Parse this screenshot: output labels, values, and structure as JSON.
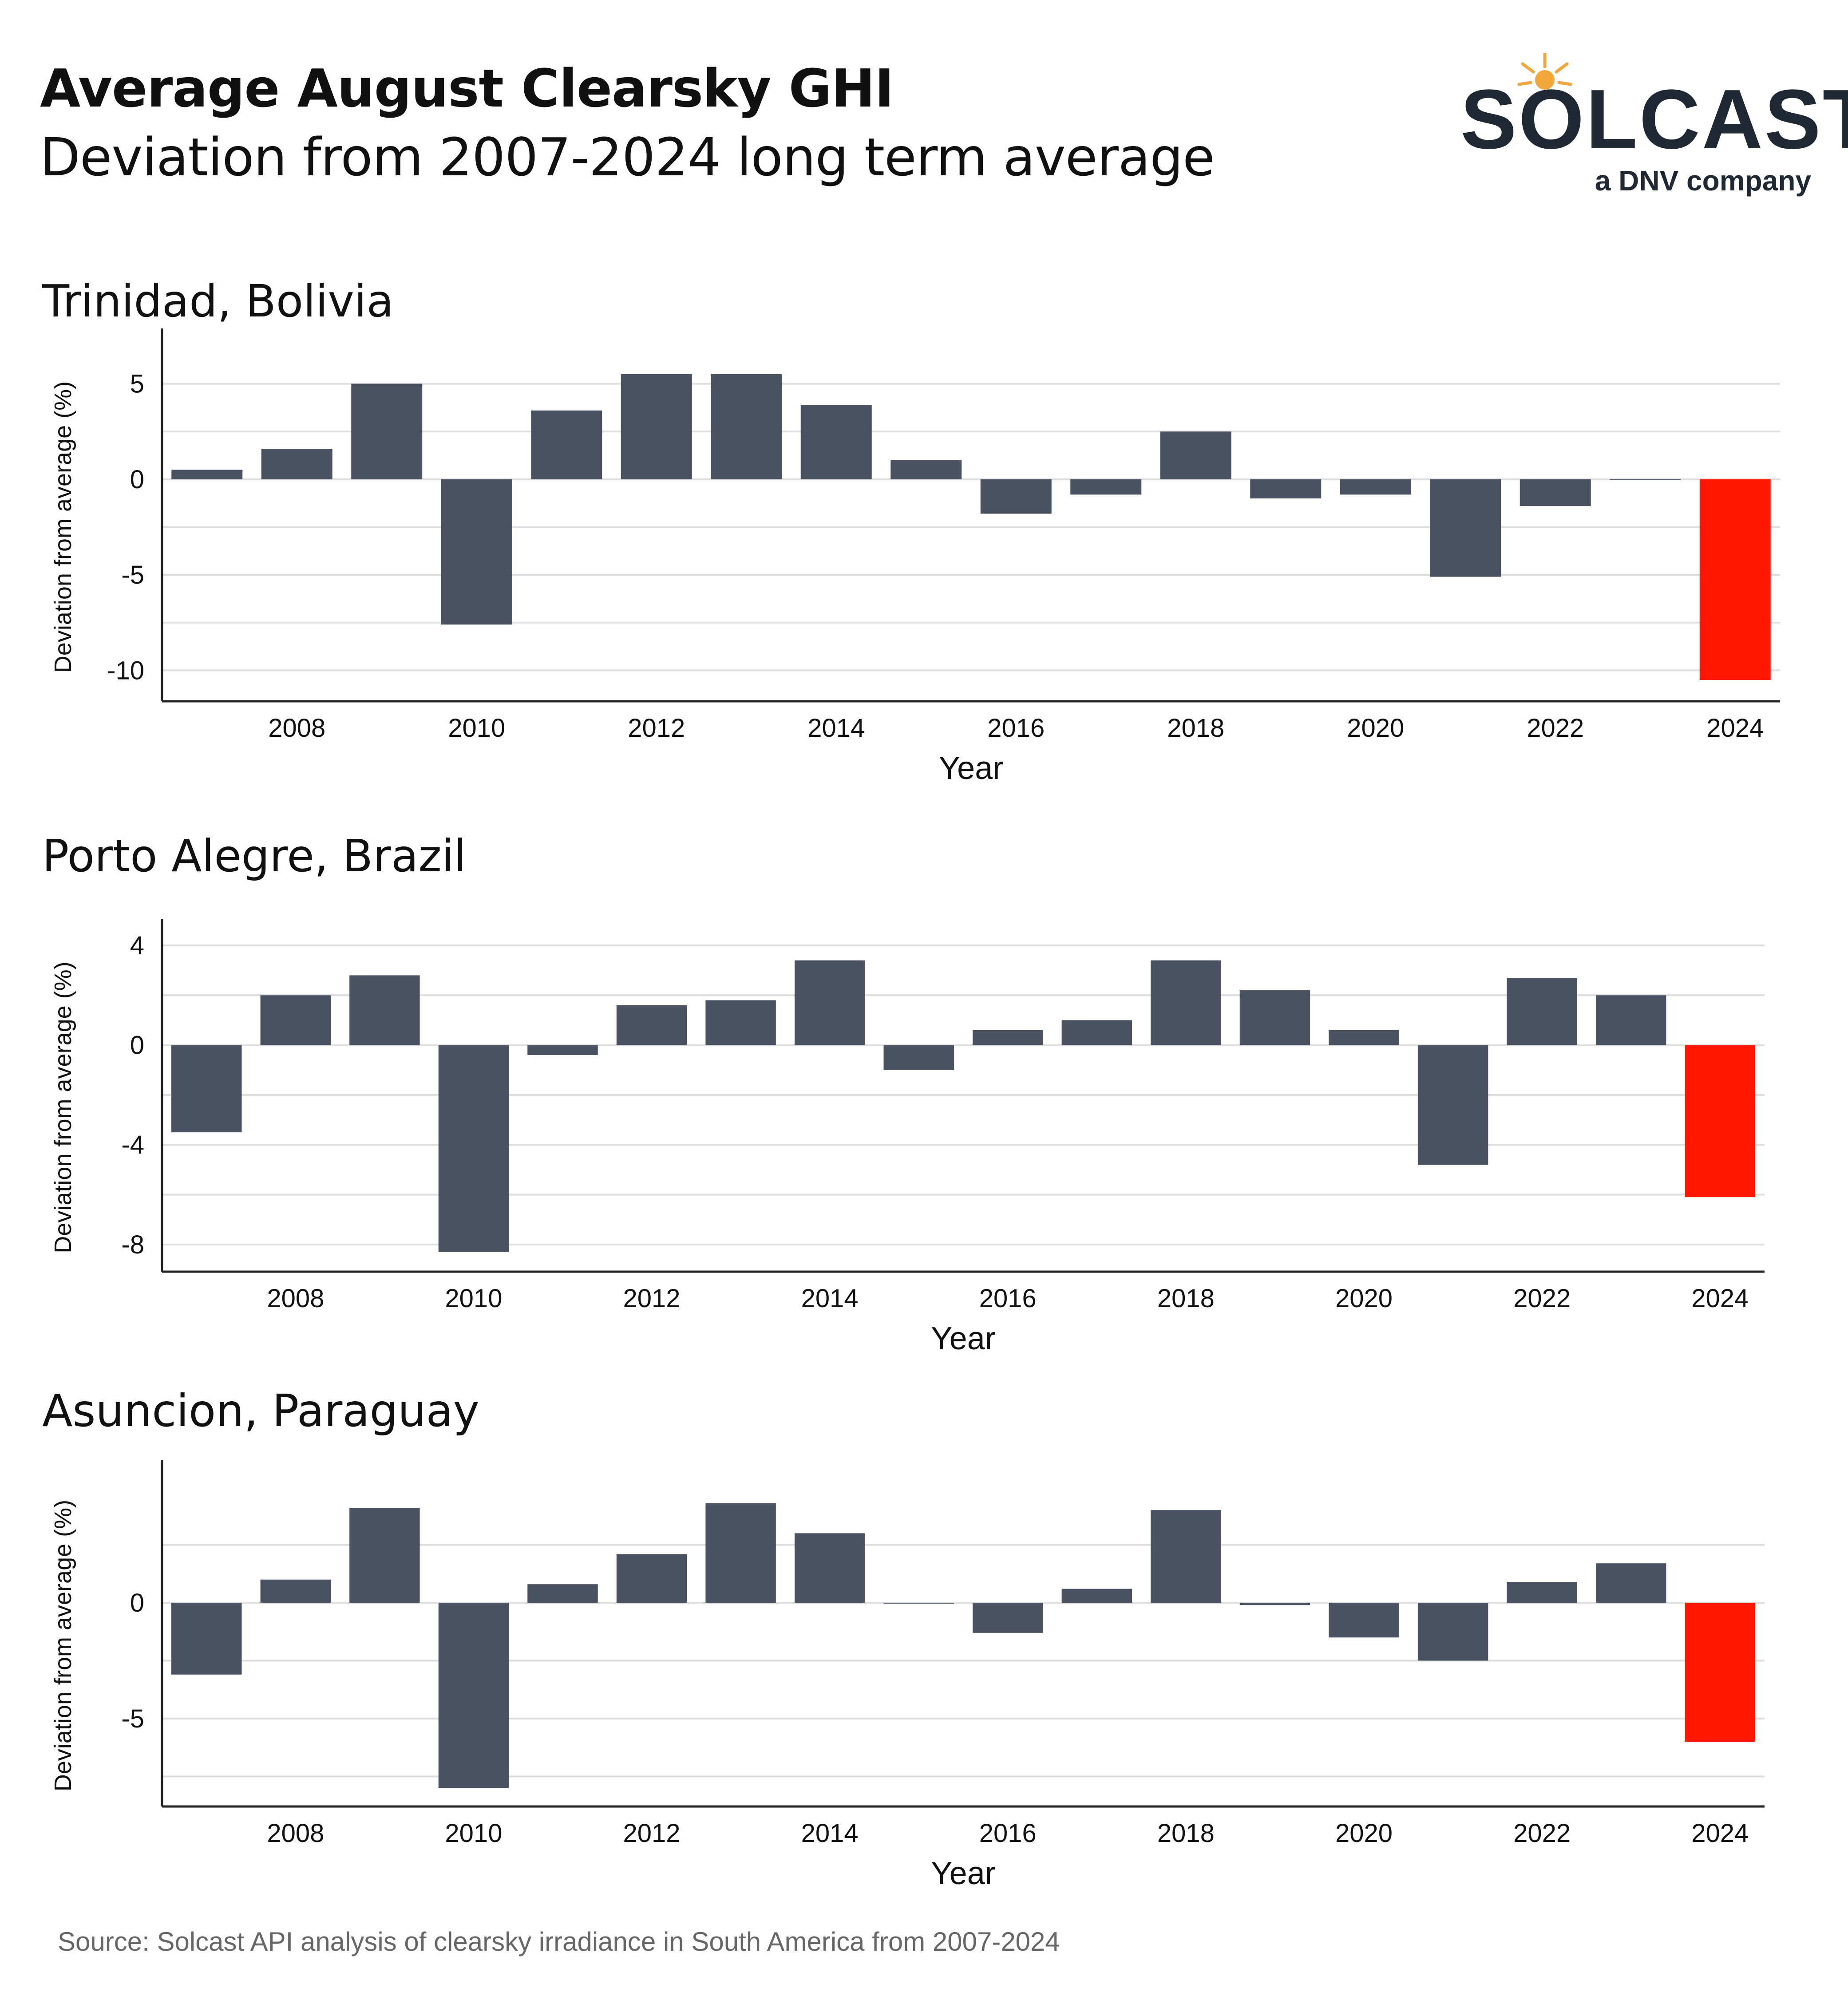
{
  "header": {
    "title": "Average August Clearsky GHI",
    "subtitle": "Deviation from 2007-2024 long term average"
  },
  "logo": {
    "wordmark": "SOLCAST",
    "tagline": "a DNV company"
  },
  "colors": {
    "bar": "#4a5160",
    "highlight": "#ff1500",
    "grid": "#dddddd",
    "axis": "#222222"
  },
  "chart_data": [
    {
      "type": "bar",
      "title": "Trinidad, Bolivia",
      "xlabel": "Year",
      "ylabel": "Deviation from average (%)",
      "categories": [
        "2007",
        "2008",
        "2009",
        "2010",
        "2011",
        "2012",
        "2013",
        "2014",
        "2015",
        "2016",
        "2017",
        "2018",
        "2019",
        "2020",
        "2021",
        "2022",
        "2023",
        "2024"
      ],
      "values": [
        0.5,
        1.6,
        5.0,
        -7.6,
        3.6,
        5.5,
        5.5,
        3.9,
        1.0,
        -1.8,
        -0.8,
        2.5,
        -1.0,
        -0.8,
        -5.1,
        -1.4,
        0.0,
        -10.5
      ],
      "highlight": "2024",
      "yticks": [
        5,
        0,
        -5,
        -10
      ],
      "ytick_labels": [
        "5",
        "0",
        "-5",
        "-10"
      ],
      "xtick_labels": [
        "2008",
        "2010",
        "2012",
        "2014",
        "2016",
        "2018",
        "2020",
        "2022",
        "2024"
      ],
      "ylim": [
        -11.5,
        6.5
      ]
    },
    {
      "type": "bar",
      "title": "Porto Alegre, Brazil",
      "xlabel": "Year",
      "ylabel": "Deviation from average (%)",
      "categories": [
        "2007",
        "2008",
        "2009",
        "2010",
        "2011",
        "2012",
        "2013",
        "2014",
        "2015",
        "2016",
        "2017",
        "2018",
        "2019",
        "2020",
        "2021",
        "2022",
        "2023",
        "2024"
      ],
      "values": [
        -3.5,
        2.0,
        2.8,
        -8.3,
        -0.4,
        1.6,
        1.8,
        3.4,
        -1.0,
        0.6,
        1.0,
        3.4,
        2.2,
        0.6,
        -4.8,
        2.7,
        2.0,
        -6.1
      ],
      "highlight": "2024",
      "yticks": [
        4,
        0,
        -4,
        -8
      ],
      "ytick_labels": [
        "4",
        "0",
        "-4",
        "-8"
      ],
      "xtick_labels": [
        "2008",
        "2010",
        "2012",
        "2014",
        "2016",
        "2018",
        "2020",
        "2022",
        "2024"
      ],
      "ylim": [
        -9,
        4
      ]
    },
    {
      "type": "bar",
      "title": "Asuncion, Paraguay",
      "xlabel": "Year",
      "ylabel": "Deviation from average (%)",
      "categories": [
        "2007",
        "2008",
        "2009",
        "2010",
        "2011",
        "2012",
        "2013",
        "2014",
        "2015",
        "2016",
        "2017",
        "2018",
        "2019",
        "2020",
        "2021",
        "2022",
        "2023",
        "2024"
      ],
      "values": [
        -3.1,
        1.0,
        4.1,
        -8.0,
        0.8,
        2.1,
        4.3,
        3.0,
        0.0,
        -1.3,
        0.6,
        4.0,
        -0.1,
        -1.5,
        -2.5,
        0.9,
        1.7,
        -6.0
      ],
      "highlight": "2024",
      "yticks": [
        0,
        -5
      ],
      "ytick_labels": [
        "0",
        "-5"
      ],
      "xtick_labels": [
        "2008",
        "2010",
        "2012",
        "2014",
        "2016",
        "2018",
        "2020",
        "2022",
        "2024"
      ],
      "ylim": [
        -8.7,
        5
      ]
    }
  ],
  "source": "Source: Solcast API analysis of clearsky irradiance in South America from 2007-2024"
}
